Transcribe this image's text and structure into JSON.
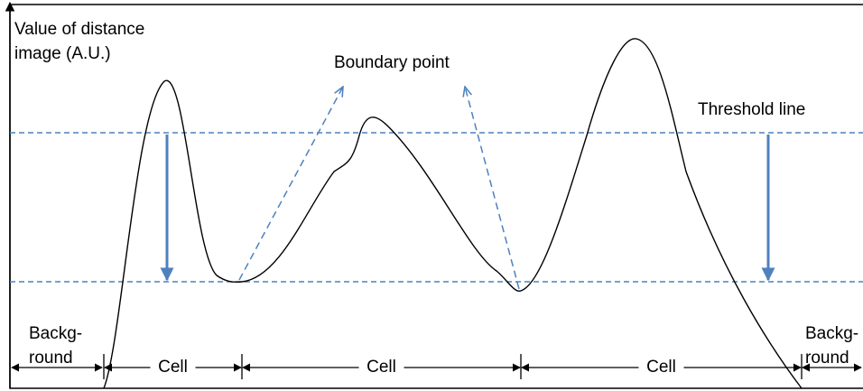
{
  "axis_label": [
    "Value of distance",
    "image (A.U.)"
  ],
  "annotations": {
    "boundary_point": "Boundary point",
    "threshold_line": "Threshold line"
  },
  "segments": [
    {
      "label": [
        "Backg-",
        "round"
      ]
    },
    {
      "label": [
        "Cell"
      ]
    },
    {
      "label": [
        "Cell"
      ]
    },
    {
      "label": [
        "Cell"
      ]
    },
    {
      "label": [
        "Backg-",
        "round"
      ]
    }
  ]
}
